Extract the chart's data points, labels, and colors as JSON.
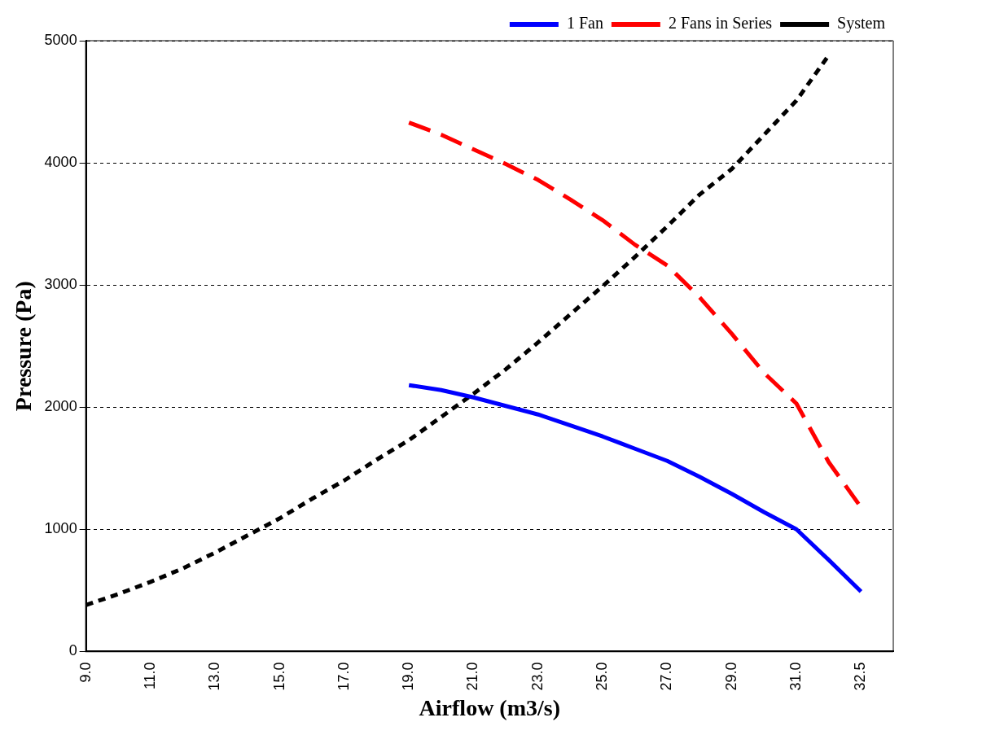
{
  "chart_data": {
    "type": "line",
    "xlabel": "Airflow (m3/s)",
    "ylabel": "Pressure (Pa)",
    "categories": [
      "9.0",
      null,
      "11.0",
      null,
      "13.0",
      null,
      "15.0",
      null,
      "17.0",
      null,
      "19.0",
      null,
      "21.0",
      null,
      "23.0",
      null,
      "25.0",
      null,
      "27.0",
      null,
      "29.0",
      null,
      "31.0",
      null,
      "32.5",
      null
    ],
    "ylim": [
      0,
      5000
    ],
    "yticks": [
      0,
      1000,
      2000,
      3000,
      4000,
      5000
    ],
    "grid": "y",
    "legend": "top right",
    "marker": "none",
    "series": [
      {
        "name": "1 Fan",
        "color": "#0000ff",
        "line_style": "solid",
        "values": [
          null,
          null,
          null,
          null,
          null,
          null,
          null,
          null,
          null,
          null,
          2180,
          2140,
          2080,
          2010,
          1940,
          1850,
          1760,
          1660,
          1560,
          1430,
          1290,
          1140,
          1000,
          750,
          490,
          null
        ]
      },
      {
        "name": "2 Fans in Series",
        "color": "#ff0000",
        "line_style": "dashed",
        "values": [
          null,
          null,
          null,
          null,
          null,
          null,
          null,
          null,
          null,
          null,
          4330,
          4230,
          4110,
          3990,
          3860,
          3700,
          3530,
          3330,
          3160,
          2900,
          2600,
          2280,
          2030,
          1550,
          1180,
          null
        ]
      },
      {
        "name": "System",
        "color": "#000000",
        "line_style": "dotted",
        "values": [
          380,
          470,
          570,
          680,
          810,
          950,
          1090,
          1250,
          1400,
          1570,
          1730,
          1920,
          2110,
          2310,
          2530,
          2760,
          2990,
          3230,
          3480,
          3740,
          3950,
          4230,
          4510,
          4880,
          null,
          null
        ]
      }
    ]
  }
}
